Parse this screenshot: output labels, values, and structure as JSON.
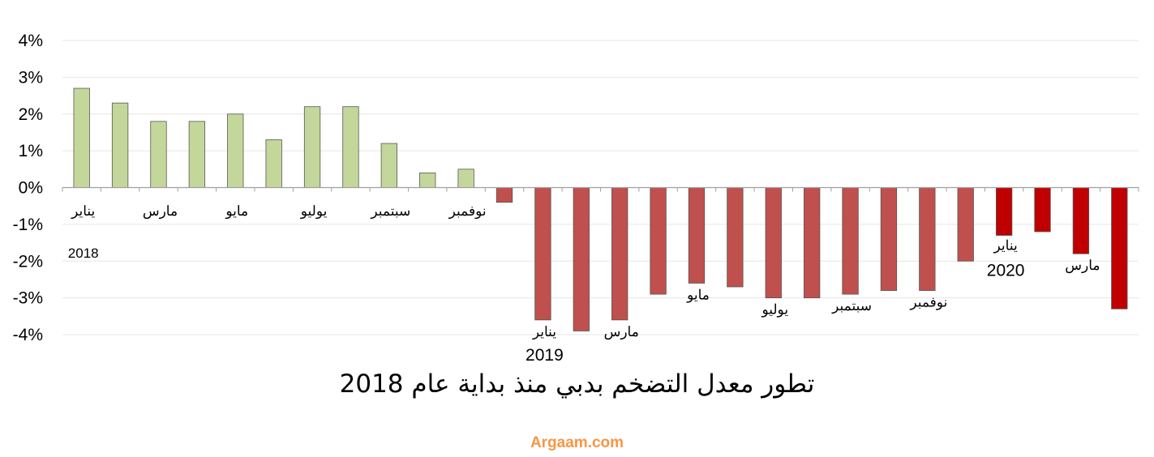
{
  "chart_data": {
    "type": "bar",
    "title": "تطور معدل التضخم بدبي منذ بداية عام 2018",
    "source": "Argaam.com",
    "ylim": [
      -4,
      4
    ],
    "yticks": [
      4,
      3,
      2,
      1,
      0,
      -1,
      -2,
      -3,
      -4
    ],
    "ytick_labels": [
      "4%",
      "3%",
      "2%",
      "1%",
      "0%",
      "-1%",
      "-2%",
      "-3%",
      "-4%"
    ],
    "grid": true,
    "values": [
      2.7,
      2.3,
      1.8,
      1.8,
      2.0,
      1.3,
      2.2,
      2.2,
      1.2,
      0.4,
      0.5,
      -0.4,
      -3.6,
      -3.9,
      -3.6,
      -2.9,
      -2.6,
      -2.7,
      -3.0,
      -3.0,
      -2.9,
      -2.8,
      -2.8,
      -2.0,
      -1.3,
      -1.2,
      -1.8,
      -3.3
    ],
    "month_labels": [
      {
        "index": 0,
        "text": "يناير"
      },
      {
        "index": 2,
        "text": "مارس"
      },
      {
        "index": 4,
        "text": "مايو"
      },
      {
        "index": 6,
        "text": "يوليو"
      },
      {
        "index": 8,
        "text": "سبتمبر"
      },
      {
        "index": 10,
        "text": "نوفمبر"
      },
      {
        "index": 12,
        "text": "يناير"
      },
      {
        "index": 14,
        "text": "مارس"
      },
      {
        "index": 16,
        "text": "مايو"
      },
      {
        "index": 18,
        "text": "يوليو"
      },
      {
        "index": 20,
        "text": "سبتمبر"
      },
      {
        "index": 22,
        "text": "نوفمبر"
      },
      {
        "index": 24,
        "text": "يناير"
      },
      {
        "index": 26,
        "text": "مارس"
      }
    ],
    "year_labels": [
      {
        "index": 0,
        "text": "2018"
      },
      {
        "index": 12,
        "text": "2019"
      },
      {
        "index": 24,
        "text": "2020"
      }
    ],
    "colors": {
      "positive": "#c4d79b",
      "negative": "#c0504d",
      "year_2020": "#c00000",
      "source": "#f79646",
      "grid": "#e6e6e6",
      "axis": "#a0a0a0",
      "bar_stroke": "#555555"
    }
  }
}
